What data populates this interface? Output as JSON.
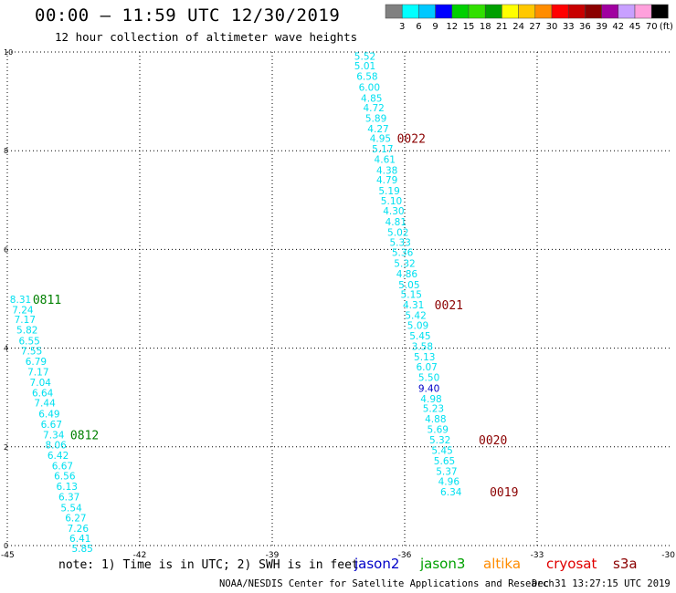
{
  "title": "00:00 – 11:59 UTC 12/30/2019",
  "subtitle": "12 hour collection of altimeter wave heights",
  "colorbar": {
    "colors": [
      "#808080",
      "#00ffff",
      "#00c8ff",
      "#0000ff",
      "#00d000",
      "#30e000",
      "#00a000",
      "#ffff00",
      "#ffc800",
      "#ff8c00",
      "#ff0000",
      "#c80000",
      "#8b0000",
      "#a000a0",
      "#c8a0ff",
      "#ffa0dc",
      "#000000"
    ],
    "labels": [
      "3",
      "6",
      "9",
      "12",
      "15",
      "18",
      "21",
      "24",
      "27",
      "30",
      "33",
      "36",
      "39",
      "42",
      "45",
      "70"
    ],
    "unit_label": "(ft)"
  },
  "satellites": [
    {
      "name": "jason2",
      "color": "#0000c8"
    },
    {
      "name": "jason3",
      "color": "#00a000"
    },
    {
      "name": "altika",
      "color": "#ff8c00"
    },
    {
      "name": "cryosat",
      "color": "#e00000"
    },
    {
      "name": "s3a",
      "color": "#8b0000"
    }
  ],
  "note": "note: 1) Time is in UTC; 2) SWH is in feet",
  "credit": "NOAA/NESDIS Center for Satellite Applications and Research",
  "timestamp": "Dec 31 13:27:15 UTC 2019",
  "chart_data": {
    "type": "scatter",
    "xlim": [
      -45,
      -30
    ],
    "ylim": [
      0,
      10
    ],
    "xticks": [
      "-45",
      "-42",
      "-39",
      "-36",
      "-33",
      "-30"
    ],
    "yticks": [
      "0",
      "2",
      "4",
      "6",
      "8",
      "10"
    ],
    "grid": true,
    "default_color": "#00e0f0",
    "tracks": [
      {
        "points": [
          {
            "x": -36.9,
            "y": 9.92,
            "v": "5.52"
          },
          {
            "x": -36.9,
            "y": 9.72,
            "v": "5.01"
          },
          {
            "x": -36.85,
            "y": 9.51,
            "v": "6.58"
          },
          {
            "x": -36.8,
            "y": 9.29,
            "v": "6.00"
          },
          {
            "x": -36.75,
            "y": 9.07,
            "v": "4.85"
          },
          {
            "x": -36.7,
            "y": 8.87,
            "v": "4.72"
          },
          {
            "x": -36.65,
            "y": 8.66,
            "v": "5.89"
          },
          {
            "x": -36.6,
            "y": 8.45,
            "v": "4.27"
          },
          {
            "x": -36.55,
            "y": 8.25,
            "v": "4.95"
          },
          {
            "x": -36.5,
            "y": 8.04,
            "v": "5.17"
          },
          {
            "x": -36.45,
            "y": 7.83,
            "v": "4.61"
          },
          {
            "x": -36.4,
            "y": 7.61,
            "v": "4.38"
          },
          {
            "x": -36.4,
            "y": 7.41,
            "v": "4.79"
          },
          {
            "x": -36.35,
            "y": 7.19,
            "v": "5.19"
          },
          {
            "x": -36.3,
            "y": 6.99,
            "v": "5.10"
          },
          {
            "x": -36.25,
            "y": 6.78,
            "v": "4.30"
          },
          {
            "x": -36.2,
            "y": 6.56,
            "v": "4.81"
          },
          {
            "x": -36.15,
            "y": 6.35,
            "v": "5.02"
          },
          {
            "x": -36.1,
            "y": 6.15,
            "v": "5.33"
          },
          {
            "x": -36.05,
            "y": 5.94,
            "v": "5.36"
          },
          {
            "x": -36.0,
            "y": 5.72,
            "v": "5.32"
          },
          {
            "x": -35.95,
            "y": 5.51,
            "v": "4.86"
          },
          {
            "x": -35.9,
            "y": 5.29,
            "v": "5.05"
          },
          {
            "x": -35.85,
            "y": 5.09,
            "v": "5.15"
          },
          {
            "x": -35.8,
            "y": 4.88,
            "v": "4.31"
          },
          {
            "x": -35.75,
            "y": 4.67,
            "v": "5.42"
          },
          {
            "x": -35.7,
            "y": 4.46,
            "v": "5.09"
          },
          {
            "x": -35.65,
            "y": 4.25,
            "v": "5.45"
          },
          {
            "x": -35.6,
            "y": 4.04,
            "v": "3.58"
          },
          {
            "x": -35.55,
            "y": 3.83,
            "v": "5.13"
          },
          {
            "x": -35.5,
            "y": 3.62,
            "v": "6.07"
          },
          {
            "x": -35.45,
            "y": 3.41,
            "v": "5.50"
          },
          {
            "x": -35.45,
            "y": 3.19,
            "v": "9.40",
            "c": "#0000c8"
          },
          {
            "x": -35.4,
            "y": 2.98,
            "v": "4.98"
          },
          {
            "x": -35.35,
            "y": 2.78,
            "v": "5.23"
          },
          {
            "x": -35.3,
            "y": 2.57,
            "v": "4.88"
          },
          {
            "x": -35.25,
            "y": 2.36,
            "v": "5.69"
          },
          {
            "x": -35.2,
            "y": 2.14,
            "v": "5.32"
          },
          {
            "x": -35.15,
            "y": 1.93,
            "v": "5.45"
          },
          {
            "x": -35.1,
            "y": 1.72,
            "v": "5.65"
          },
          {
            "x": -35.05,
            "y": 1.51,
            "v": "5.37"
          },
          {
            "x": -35.0,
            "y": 1.3,
            "v": "4.96"
          },
          {
            "x": -34.95,
            "y": 1.09,
            "v": "6.34"
          }
        ],
        "time_labels": [
          {
            "x": -35.85,
            "y": 8.25,
            "t": "0022",
            "c": "#8b0000"
          },
          {
            "x": -35.0,
            "y": 4.88,
            "t": "0021",
            "c": "#8b0000"
          },
          {
            "x": -34.0,
            "y": 2.14,
            "t": "0020",
            "c": "#8b0000"
          },
          {
            "x": -33.75,
            "y": 1.09,
            "t": "0019",
            "c": "#8b0000"
          }
        ]
      },
      {
        "points": [
          {
            "x": -44.7,
            "y": 4.99,
            "v": "8.31"
          },
          {
            "x": -44.65,
            "y": 4.78,
            "v": "7.24"
          },
          {
            "x": -44.6,
            "y": 4.58,
            "v": "7.17"
          },
          {
            "x": -44.55,
            "y": 4.37,
            "v": "5.82"
          },
          {
            "x": -44.5,
            "y": 4.15,
            "v": "6.55"
          },
          {
            "x": -44.45,
            "y": 3.95,
            "v": "7.55"
          },
          {
            "x": -44.35,
            "y": 3.73,
            "v": "6.79"
          },
          {
            "x": -44.3,
            "y": 3.52,
            "v": "7.17"
          },
          {
            "x": -44.25,
            "y": 3.31,
            "v": "7.04"
          },
          {
            "x": -44.2,
            "y": 3.1,
            "v": "6.64"
          },
          {
            "x": -44.15,
            "y": 2.89,
            "v": "7.44"
          },
          {
            "x": -44.05,
            "y": 2.67,
            "v": "6.49"
          },
          {
            "x": -44.0,
            "y": 2.46,
            "v": "6.67"
          },
          {
            "x": -43.95,
            "y": 2.25,
            "v": "7.34"
          },
          {
            "x": -43.9,
            "y": 2.04,
            "v": "8.06"
          },
          {
            "x": -43.85,
            "y": 1.83,
            "v": "6.42"
          },
          {
            "x": -43.75,
            "y": 1.62,
            "v": "6.67"
          },
          {
            "x": -43.7,
            "y": 1.41,
            "v": "6.56"
          },
          {
            "x": -43.65,
            "y": 1.2,
            "v": "6.13"
          },
          {
            "x": -43.6,
            "y": 0.99,
            "v": "6.37"
          },
          {
            "x": -43.55,
            "y": 0.77,
            "v": "5.54"
          },
          {
            "x": -43.45,
            "y": 0.56,
            "v": "6.27"
          },
          {
            "x": -43.4,
            "y": 0.35,
            "v": "7.26"
          },
          {
            "x": -43.35,
            "y": 0.15,
            "v": "6.41"
          },
          {
            "x": -43.3,
            "y": -0.06,
            "v": "5.85"
          }
        ],
        "time_labels": [
          {
            "x": -44.1,
            "y": 4.99,
            "t": "0811",
            "c": "#008000"
          },
          {
            "x": -43.25,
            "y": 2.25,
            "t": "0812",
            "c": "#008000"
          }
        ]
      }
    ]
  }
}
